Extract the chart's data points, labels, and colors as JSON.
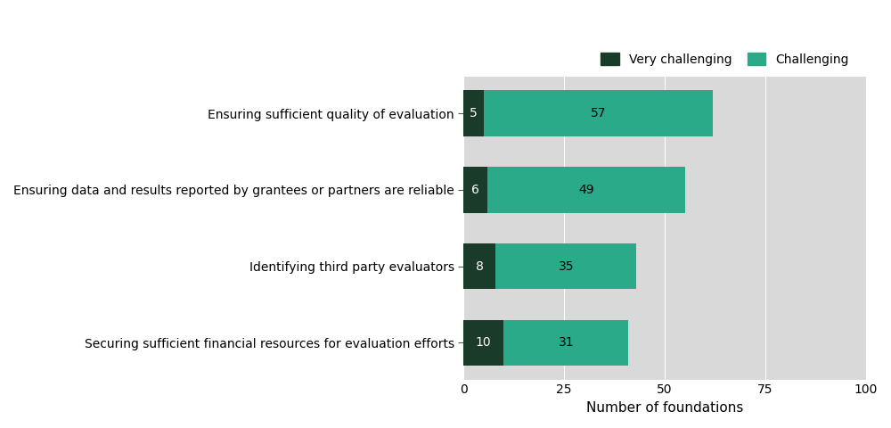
{
  "categories": [
    "Ensuring sufficient quality of evaluation",
    "Ensuring data and results reported by grantees or partners are reliable",
    "Identifying third party evaluators",
    "Securing sufficient financial resources for evaluation efforts"
  ],
  "very_challenging": [
    5,
    6,
    8,
    10
  ],
  "challenging": [
    57,
    49,
    35,
    31
  ],
  "color_very_challenging": "#1a3a2a",
  "color_challenging": "#2baa8a",
  "figure_bg_color": "#ffffff",
  "plot_bg_color": "#d9d9d9",
  "xlabel": "Number of foundations",
  "xlim": [
    0,
    100
  ],
  "xticks": [
    0,
    25,
    50,
    75,
    100
  ],
  "legend_very_challenging": "Very challenging",
  "legend_challenging": "Challenging",
  "bar_height": 0.6,
  "label_fontsize": 10,
  "tick_fontsize": 10,
  "xlabel_fontsize": 11,
  "legend_fontsize": 10,
  "figsize": [
    10.0,
    4.8
  ],
  "dpi": 100
}
